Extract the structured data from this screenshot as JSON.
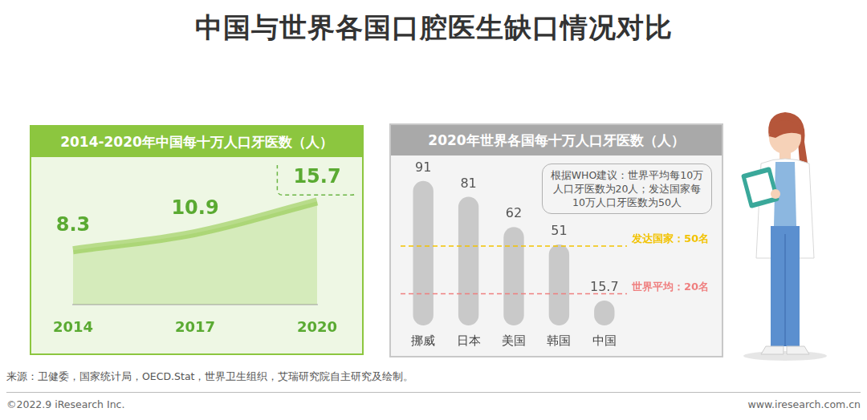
{
  "title": "中国与世界各国口腔医生缺口情况对比",
  "source": "来源：卫健委，国家统计局，OECD.Stat，世界卫生组织，艾瑞研究院自主研究及绘制。",
  "copyright": "©2022.9 iResearch Inc.",
  "website": "www.iresearch.com.cn",
  "chart_data": [
    {
      "type": "line",
      "title": "2014-2020年中国每十万人口牙医数（人）",
      "categories": [
        "2014",
        "2017",
        "2020"
      ],
      "values": [
        8.3,
        10.9,
        15.7
      ],
      "color": "#8cc63f",
      "ylim": [
        0,
        20
      ],
      "data_labels": true,
      "tick_labels": "x",
      "grid": false
    },
    {
      "type": "bar",
      "title": "2020年世界各国每十万人口牙医数（人）",
      "categories": [
        "挪威",
        "日本",
        "美国",
        "韩国",
        "中国"
      ],
      "values": [
        91,
        81,
        62,
        51,
        15.7
      ],
      "color": "#c9c9c9",
      "ylim": [
        0,
        100
      ],
      "data_labels": true,
      "tick_labels": "x",
      "grid": false,
      "annotation": "根据WHO建议：世界平均每10万人口牙医数为20人；发达国家每10万人口牙医数为50人",
      "reference_lines": [
        {
          "value": 50,
          "label": "发达国家：50名",
          "color": "#f2c200"
        },
        {
          "value": 20,
          "label": "世界平均：20名",
          "color": "#ef7f7f"
        }
      ]
    }
  ]
}
